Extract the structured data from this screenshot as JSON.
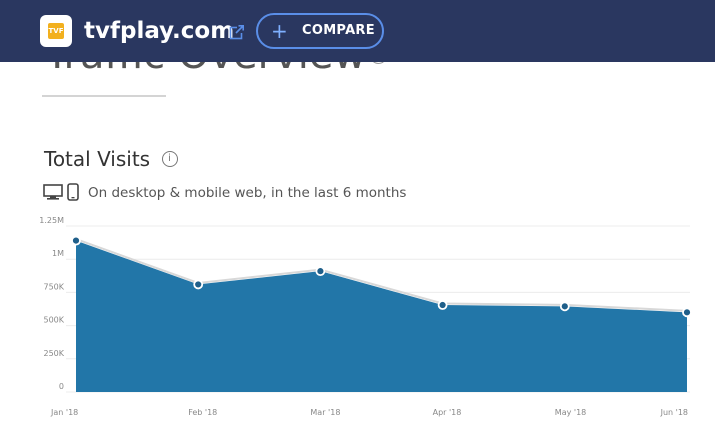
{
  "header": {
    "logo_text": "TVF",
    "domain": "tvfplay.com",
    "compare_label": "COMPARE"
  },
  "section": {
    "title": "Traffic Overview"
  },
  "card": {
    "title": "Total Visits",
    "subtitle": "On desktop & mobile web, in the last 6 months"
  },
  "colors": {
    "header_bg": "#2a3760",
    "area_fill": "#2276a8",
    "compare_border": "#5a8ee8"
  },
  "chart_data": {
    "type": "area",
    "categories": [
      "Jan '18",
      "Feb '18",
      "Mar '18",
      "Apr '18",
      "May '18",
      "Jun '18"
    ],
    "values": [
      1140000,
      810000,
      910000,
      655000,
      645000,
      600000
    ],
    "ylim": [
      0,
      1250000
    ],
    "yticks": [
      0,
      250000,
      500000,
      750000,
      1000000,
      1250000
    ],
    "ytick_labels": [
      "0",
      "250K",
      "500K",
      "750K",
      "1M",
      "1.25M"
    ],
    "grid": true,
    "title": "Total Visits",
    "xlabel": "",
    "ylabel": ""
  }
}
